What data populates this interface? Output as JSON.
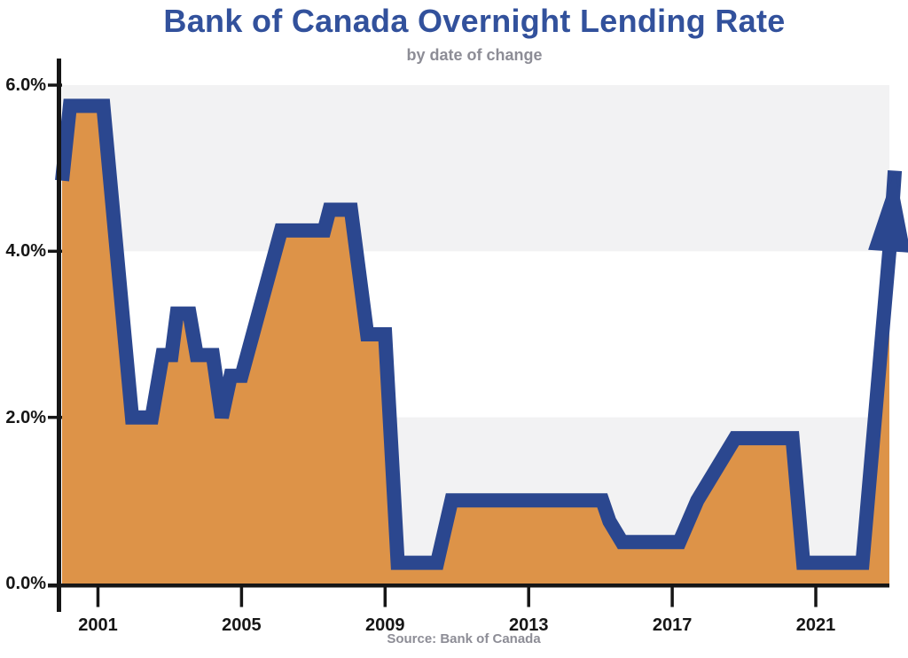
{
  "chart_data": {
    "type": "area",
    "title": "Bank of Canada Overnight Lending Rate",
    "subtitle": "by date of change",
    "source": "Source: Bank of Canada",
    "xlabel": "",
    "ylabel": "",
    "x_range": [
      2000,
      2023.05
    ],
    "y_range": [
      0,
      6
    ],
    "grid": "off",
    "legend": "none",
    "y_ticks": [
      {
        "value": 6,
        "label": "6.0%"
      },
      {
        "value": 4,
        "label": "4.0%"
      },
      {
        "value": 2,
        "label": "2.0%"
      },
      {
        "value": 0,
        "label": "0.0%"
      }
    ],
    "x_ticks": [
      {
        "value": 2001,
        "label": "2001"
      },
      {
        "value": 2005,
        "label": "2005"
      },
      {
        "value": 2009,
        "label": "2009"
      },
      {
        "value": 2013,
        "label": "2013"
      },
      {
        "value": 2017,
        "label": "2017"
      },
      {
        "value": 2021,
        "label": "2021"
      }
    ],
    "bands": [
      {
        "from": 4,
        "to": 6
      },
      {
        "from": 0,
        "to": 2
      }
    ],
    "points": [
      [
        2000.0,
        4.85
      ],
      [
        2000.22,
        5.75
      ],
      [
        2001.15,
        5.75
      ],
      [
        2001.95,
        2.0
      ],
      [
        2002.5,
        2.0
      ],
      [
        2002.8,
        2.75
      ],
      [
        2003.05,
        2.75
      ],
      [
        2003.2,
        3.25
      ],
      [
        2003.55,
        3.25
      ],
      [
        2003.75,
        2.75
      ],
      [
        2004.2,
        2.75
      ],
      [
        2004.45,
        2.0
      ],
      [
        2004.7,
        2.5
      ],
      [
        2005.0,
        2.5
      ],
      [
        2006.1,
        4.25
      ],
      [
        2007.3,
        4.25
      ],
      [
        2007.45,
        4.5
      ],
      [
        2008.05,
        4.5
      ],
      [
        2008.5,
        3.0
      ],
      [
        2009.0,
        3.0
      ],
      [
        2009.35,
        0.25
      ],
      [
        2010.45,
        0.25
      ],
      [
        2010.85,
        1.0
      ],
      [
        2015.05,
        1.0
      ],
      [
        2015.25,
        0.75
      ],
      [
        2015.6,
        0.5
      ],
      [
        2017.2,
        0.5
      ],
      [
        2017.7,
        1.0
      ],
      [
        2018.75,
        1.75
      ],
      [
        2020.35,
        1.75
      ],
      [
        2020.65,
        0.25
      ],
      [
        2022.3,
        0.25
      ],
      [
        2023.05,
        4.0
      ]
    ],
    "arrow_tip": [
      2023.2,
      4.97
    ],
    "colors": {
      "line": "#2b478f",
      "fill": "#dd9348",
      "band": "#f2f2f3",
      "axis": "#161616",
      "title": "#32519c",
      "subtitle": "#8d8d96",
      "source": "#8d8d96",
      "tick_label": "#161616"
    }
  }
}
